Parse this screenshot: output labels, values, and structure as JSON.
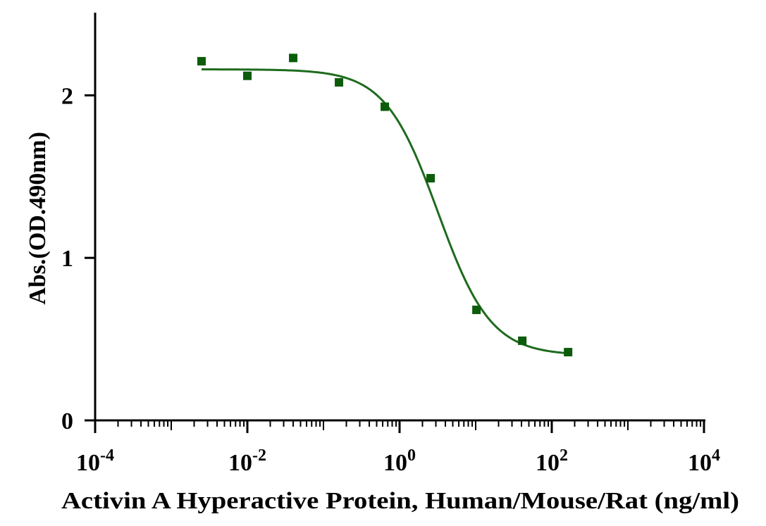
{
  "chart_data": {
    "type": "scatter",
    "title": "",
    "xlabel": "Activin A Hyperactive Protein, Human/Mouse/Rat (ng/ml)",
    "ylabel": "Abs.(OD.490nm)",
    "x_scale": "log10",
    "xlim": [
      0.0001,
      10000
    ],
    "ylim": [
      0,
      2.5
    ],
    "grid": false,
    "legend": "none",
    "x_ticks": [
      {
        "value": 0.0001,
        "base": "10",
        "exp": "-4"
      },
      {
        "value": 0.01,
        "base": "10",
        "exp": "-2"
      },
      {
        "value": 1,
        "base": "10",
        "exp": "0"
      },
      {
        "value": 100,
        "base": "10",
        "exp": "2"
      },
      {
        "value": 10000,
        "base": "10",
        "exp": "4"
      }
    ],
    "y_ticks": [
      {
        "value": 0,
        "label": "0"
      },
      {
        "value": 1,
        "label": "1"
      },
      {
        "value": 2,
        "label": "2"
      }
    ],
    "series": [
      {
        "marker": "square",
        "color": "#0b5c0b",
        "x": [
          0.0025,
          0.01,
          0.04,
          0.16,
          0.64,
          2.56,
          10.24,
          40.96,
          163.84
        ],
        "y": [
          2.21,
          2.12,
          2.23,
          2.08,
          1.93,
          1.49,
          0.68,
          0.49,
          0.42
        ]
      }
    ],
    "fit": {
      "model": "4PL",
      "color": "#1e6b1e",
      "top": 2.16,
      "bottom": 0.4,
      "ec50": 3.2,
      "hill": 1.25,
      "x_range": [
        0.0025,
        163.84
      ]
    }
  }
}
